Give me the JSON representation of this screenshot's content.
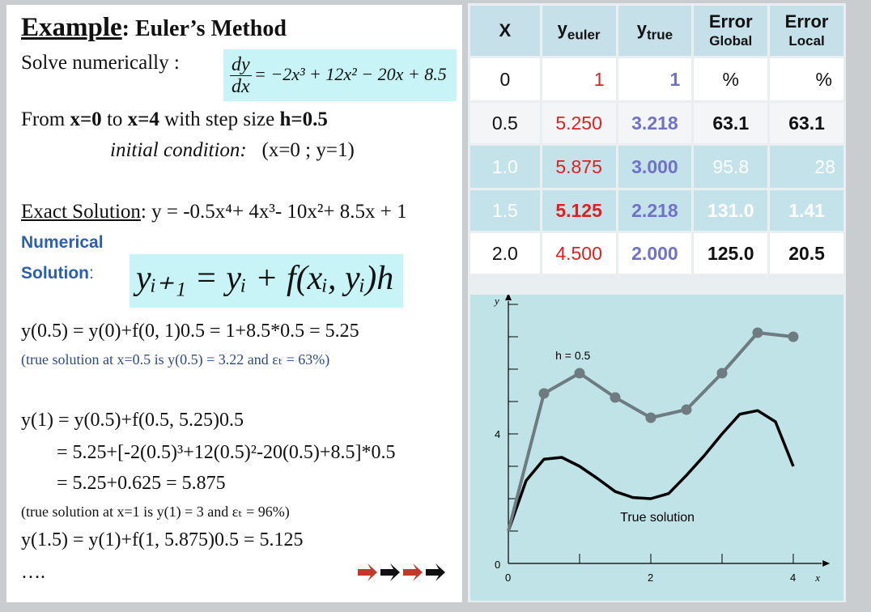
{
  "left": {
    "title_word": "Example",
    "title_rest": ": Euler’s Method",
    "solve_label": "Solve numerically :",
    "ode_num": "dy",
    "ode_den": "dx",
    "ode_rhs": "= −2x³ + 12x² − 20x + 8.5",
    "from_pre": "From ",
    "from_x0": "x=0",
    "from_to": " to ",
    "from_x4": "x=4",
    "from_mid": " with step size ",
    "from_h": "h=0.5",
    "initial_label": "initial condition:",
    "initial_value": "(x=0 ; y=1)",
    "exact_label": "Exact Solution",
    "exact_expr": ": y = -0.5x⁴+ 4x³- 10x²+ 8.5x + 1",
    "numerical_label": "Numerical",
    "solution_label": "Solution",
    "solution_colon": ":",
    "euler_formula": "yᵢ₊₁ = yᵢ + f(xᵢ, yᵢ)h",
    "step1": "y(0.5) = y(0)+f(0, 1)0.5 = 1+8.5*0.5 = 5.25",
    "note1": "(true solution at x=0.5 is y(0.5) = 3.22  and εₜ = 63%)",
    "step2a": "y(1) = y(0.5)+f(0.5, 5.25)0.5",
    "step2b": "= 5.25+[-2(0.5)³+12(0.5)²-20(0.5)+8.5]*0.5",
    "step2c": "= 5.25+0.625 = 5.875",
    "note2": "(true solution at x=1 is y(1) = 3 and  εₜ = 96%)",
    "step3": "y(1.5) = y(1)+f(1, 5.875)0.5 = 5.125",
    "ellipsis": "….",
    "colors": {
      "arrow_red": "#c0392b",
      "arrow_black": "#111111",
      "highlight": "#c9f4f7",
      "blue_text": "#2a5fb0"
    }
  },
  "table": {
    "headers": {
      "x": "X",
      "y_euler_main": "y",
      "y_euler_sub": "euler",
      "y_true_main": "y",
      "y_true_sub": "true",
      "err_global_top": "Error",
      "err_global_bot": "Global",
      "err_local_top": "Error",
      "err_local_bot": "Local"
    },
    "rows": [
      {
        "x": "0",
        "y_euler": "1",
        "y_true": "1",
        "err_global": "%",
        "err_local": "%"
      },
      {
        "x": "0.5",
        "y_euler": "5.250",
        "y_true": "3.218",
        "err_global": "63.1",
        "err_local": "63.1"
      },
      {
        "x": "1.0",
        "y_euler": "5.875",
        "y_true": "3.000",
        "err_global": "95.8",
        "err_local": "28"
      },
      {
        "x": "1.5",
        "y_euler": "5.125",
        "y_true": "2.218",
        "err_global": "131.0",
        "err_local": "1.41"
      },
      {
        "x": "2.0",
        "y_euler": "4.500",
        "y_true": "2.000",
        "err_global": "125.0",
        "err_local": "20.5"
      }
    ]
  },
  "chart_data": {
    "type": "line",
    "xlabel": "x",
    "ylabel": "y",
    "xlim": [
      0,
      4.4
    ],
    "ylim": [
      0,
      8.1
    ],
    "x_ticks": [
      "0",
      "2",
      "4"
    ],
    "y_ticks": [
      "0",
      "4"
    ],
    "annotations": [
      "h = 0.5",
      "True solution"
    ],
    "series": [
      {
        "x": [
          0,
          0.5,
          1.0,
          1.5,
          2.0,
          2.5,
          3.0,
          3.5,
          4.0
        ],
        "y": [
          1,
          5.25,
          5.875,
          5.125,
          4.5,
          4.75,
          5.875,
          7.125,
          7.0
        ],
        "color": "#6e7b80"
      },
      {
        "x": [
          0,
          0.25,
          0.5,
          0.75,
          1.0,
          1.25,
          1.5,
          1.75,
          2.0,
          2.25,
          2.5,
          2.75,
          3.0,
          3.25,
          3.5,
          3.75,
          4.0
        ],
        "y": [
          1.0,
          2.561,
          3.219,
          3.276,
          3.0,
          2.624,
          2.219,
          2.036,
          2.0,
          2.158,
          2.719,
          3.331,
          4.0,
          4.609,
          4.719,
          4.374,
          3.0
        ],
        "color": "#000000"
      }
    ]
  }
}
